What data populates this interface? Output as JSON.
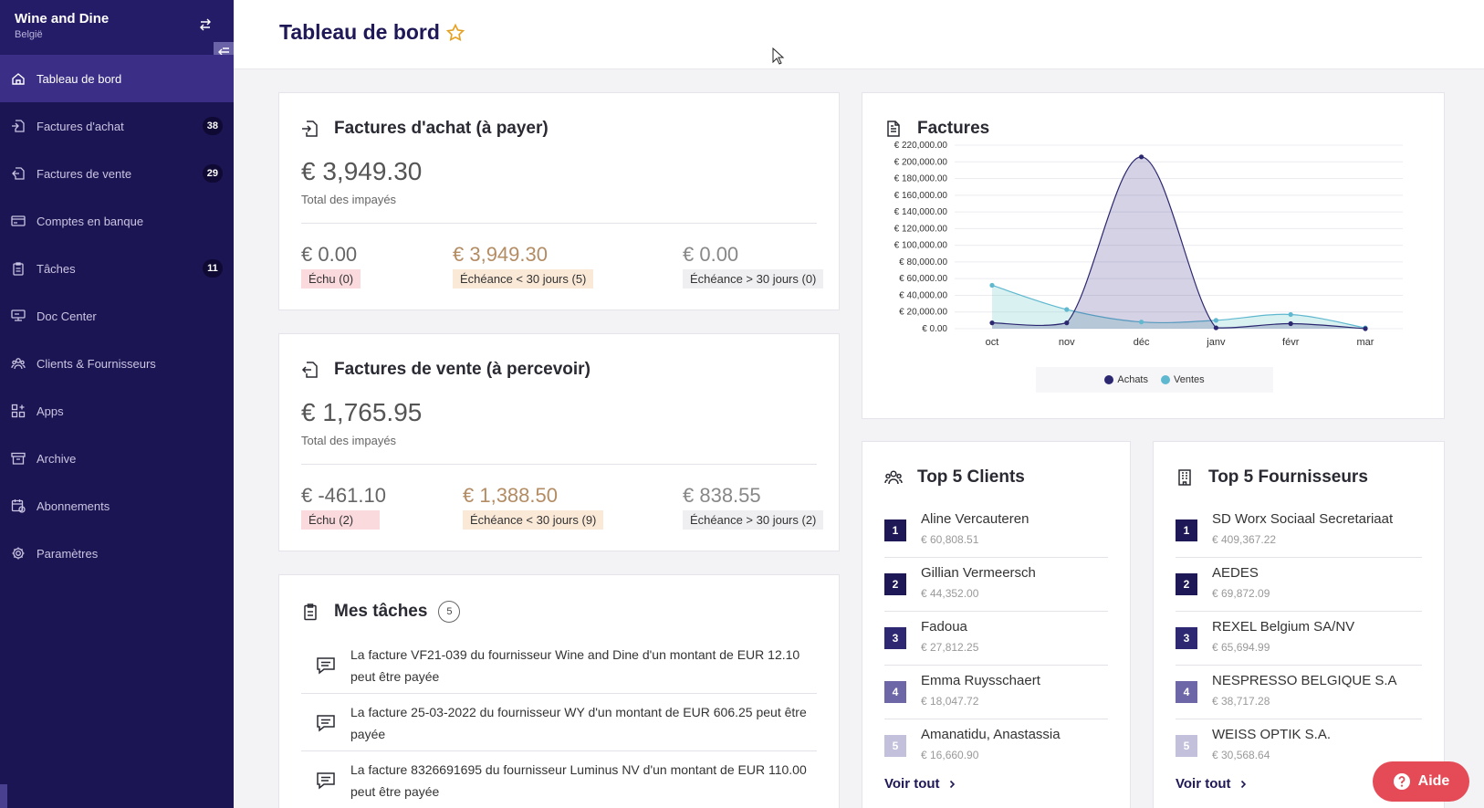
{
  "brand": {
    "name": "Wine and Dine",
    "subtitle": "België"
  },
  "sidebar": {
    "items": [
      {
        "label": "Tableau de bord",
        "icon": "home-icon",
        "active": true
      },
      {
        "label": "Factures d'achat",
        "icon": "invoice-in-icon",
        "badge": "38"
      },
      {
        "label": "Factures de vente",
        "icon": "invoice-out-icon",
        "badge": "29"
      },
      {
        "label": "Comptes en banque",
        "icon": "bank-card-icon"
      },
      {
        "label": "Tâches",
        "icon": "clipboard-icon",
        "badge": "11"
      },
      {
        "label": "Doc Center",
        "icon": "doc-center-icon"
      },
      {
        "label": "Clients & Fournisseurs",
        "icon": "people-icon"
      },
      {
        "label": "Apps",
        "icon": "apps-icon"
      },
      {
        "label": "Archive",
        "icon": "archive-icon"
      },
      {
        "label": "Abonnements",
        "icon": "subscriptions-icon"
      },
      {
        "label": "Paramètres",
        "icon": "gear-icon"
      }
    ]
  },
  "header": {
    "title": "Tableau de bord"
  },
  "purchase": {
    "title": "Factures d'achat (à payer)",
    "total": "€ 3,949.30",
    "total_label": "Total des impayés",
    "due": {
      "amount": "€ 0.00",
      "label": "Échu (0)"
    },
    "soon": {
      "amount": "€ 3,949.30",
      "label": "Échéance < 30 jours (5)"
    },
    "later": {
      "amount": "€ 0.00",
      "label": "Échéance > 30 jours (0)"
    }
  },
  "sales": {
    "title": "Factures de vente (à percevoir)",
    "total": "€ 1,765.95",
    "total_label": "Total des impayés",
    "due": {
      "amount": "€ -461.10",
      "label": "Échu (2)"
    },
    "soon": {
      "amount": "€ 1,388.50",
      "label": "Échéance < 30 jours (9)"
    },
    "later": {
      "amount": "€ 838.55",
      "label": "Échéance > 30 jours (2)"
    }
  },
  "tasks": {
    "title": "Mes tâches",
    "count": "5",
    "items": [
      "La facture VF21-039 du fournisseur Wine and Dine d'un montant de EUR 12.10 peut être payée",
      "La facture 25-03-2022 du fournisseur WY d'un montant de EUR 606.25 peut être payée",
      "La facture 8326691695 du fournisseur Luminus NV d'un montant de EUR 110.00 peut être payée"
    ]
  },
  "invoices_chart": {
    "title": "Factures"
  },
  "chart_data": {
    "type": "area",
    "title": "Factures",
    "categories": [
      "oct",
      "nov",
      "déc",
      "janv",
      "févr",
      "mar"
    ],
    "ylim": [
      0,
      220000
    ],
    "yticks": [
      "€ 0.00",
      "€ 20,000.00",
      "€ 40,000.00",
      "€ 60,000.00",
      "€ 80,000.00",
      "€ 100,000.00",
      "€ 120,000.00",
      "€ 140,000.00",
      "€ 160,000.00",
      "€ 180,000.00",
      "€ 200,000.00",
      "€ 220,000.00"
    ],
    "grid": true,
    "legend": "bottom",
    "series": [
      {
        "name": "Achats",
        "values": [
          7000,
          7000,
          206000,
          1000,
          6000,
          0
        ],
        "color": "#2b2770"
      },
      {
        "name": "Ventes",
        "values": [
          52000,
          23000,
          8000,
          10000,
          17000,
          1000
        ],
        "color": "#5fb8d0"
      }
    ]
  },
  "top_clients": {
    "title": "Top 5 Clients",
    "see_all": "Voir tout",
    "items": [
      {
        "rank": "1",
        "name": "Aline Vercauteren",
        "amount": "€ 60,808.51"
      },
      {
        "rank": "2",
        "name": "Gillian Vermeersch",
        "amount": "€ 44,352.00"
      },
      {
        "rank": "3",
        "name": "Fadoua",
        "amount": "€ 27,812.25"
      },
      {
        "rank": "4",
        "name": "Emma Ruysschaert",
        "amount": "€ 18,047.72"
      },
      {
        "rank": "5",
        "name": "Amanatidu, Anastassia",
        "amount": "€ 16,660.90"
      }
    ]
  },
  "top_suppliers": {
    "title": "Top 5 Fournisseurs",
    "see_all": "Voir tout",
    "items": [
      {
        "rank": "1",
        "name": "SD Worx Sociaal Secretariaat",
        "amount": "€ 409,367.22"
      },
      {
        "rank": "2",
        "name": "AEDES",
        "amount": "€ 69,872.09"
      },
      {
        "rank": "3",
        "name": "REXEL Belgium SA/NV",
        "amount": "€ 65,694.99"
      },
      {
        "rank": "4",
        "name": "NESPRESSO BELGIQUE S.A",
        "amount": "€ 38,717.28"
      },
      {
        "rank": "5",
        "name": "WEISS OPTIK S.A.",
        "amount": "€ 30,568.64"
      }
    ]
  },
  "rank_colors": [
    "#1e1856",
    "#1e1856",
    "#2e2873",
    "#6d67a8",
    "#c3c0dc"
  ],
  "help": {
    "label": "Aide"
  }
}
